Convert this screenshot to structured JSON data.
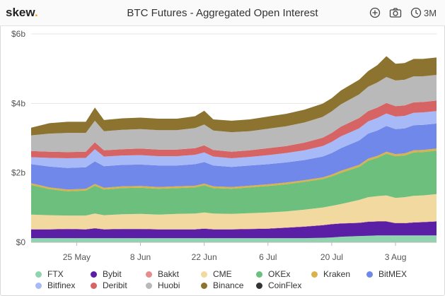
{
  "header": {
    "logo_text": "skew",
    "logo_dot": ".",
    "title": "BTC Futures - Aggregated Open Interest",
    "add_icon": "plus-circle-icon",
    "camera_icon": "camera-icon",
    "period_icon": "clock-icon",
    "period_label": "3M"
  },
  "chart_data": {
    "type": "area",
    "stacked": true,
    "title": "BTC Futures - Aggregated Open Interest",
    "ylim": [
      0,
      6
    ],
    "y_unit": "$ billions",
    "y_ticks": [
      "$0",
      "$2b",
      "$4b",
      "$6b"
    ],
    "y_tick_values": [
      0,
      2,
      4,
      6
    ],
    "x_ticks": [
      "25 May",
      "8 Jun",
      "22 Jun",
      "6 Jul",
      "20 Jul",
      "3 Aug"
    ],
    "x_tick_days": [
      10,
      24,
      38,
      52,
      66,
      80
    ],
    "x_range_days": [
      0,
      89
    ],
    "grid": true,
    "legend_position": "bottom",
    "sample_days": [
      0,
      4,
      8,
      12,
      14,
      16,
      20,
      24,
      28,
      32,
      36,
      38,
      40,
      44,
      48,
      52,
      56,
      60,
      64,
      66,
      68,
      72,
      74,
      76,
      78,
      80,
      82,
      84,
      86,
      89
    ],
    "series": [
      {
        "name": "FTX",
        "color": "#8fd4ae",
        "values": [
          0.12,
          0.12,
          0.12,
          0.12,
          0.12,
          0.12,
          0.12,
          0.12,
          0.12,
          0.12,
          0.12,
          0.12,
          0.12,
          0.12,
          0.12,
          0.12,
          0.12,
          0.12,
          0.13,
          0.14,
          0.16,
          0.18,
          0.19,
          0.2,
          0.2,
          0.2,
          0.2,
          0.2,
          0.2,
          0.2
        ]
      },
      {
        "name": "Bybit",
        "color": "#5b1fa6",
        "values": [
          0.25,
          0.25,
          0.26,
          0.25,
          0.28,
          0.25,
          0.26,
          0.26,
          0.25,
          0.25,
          0.25,
          0.27,
          0.25,
          0.25,
          0.26,
          0.27,
          0.3,
          0.33,
          0.36,
          0.38,
          0.38,
          0.38,
          0.4,
          0.4,
          0.4,
          0.35,
          0.35,
          0.37,
          0.38,
          0.4
        ]
      },
      {
        "name": "Bakkt",
        "color": "#e58c8c",
        "values": [
          0.01,
          0.01,
          0.01,
          0.01,
          0.01,
          0.01,
          0.01,
          0.01,
          0.01,
          0.01,
          0.01,
          0.01,
          0.01,
          0.01,
          0.01,
          0.01,
          0.01,
          0.01,
          0.01,
          0.01,
          0.01,
          0.01,
          0.01,
          0.01,
          0.01,
          0.01,
          0.01,
          0.01,
          0.01,
          0.01
        ]
      },
      {
        "name": "CME",
        "color": "#f2d9a0",
        "values": [
          0.42,
          0.4,
          0.38,
          0.39,
          0.42,
          0.4,
          0.42,
          0.43,
          0.42,
          0.44,
          0.45,
          0.46,
          0.45,
          0.44,
          0.45,
          0.46,
          0.46,
          0.48,
          0.5,
          0.52,
          0.55,
          0.65,
          0.7,
          0.72,
          0.74,
          0.72,
          0.74,
          0.76,
          0.76,
          0.78
        ]
      },
      {
        "name": "OKEx",
        "color": "#6cbf7d",
        "values": [
          0.85,
          0.75,
          0.7,
          0.72,
          0.8,
          0.74,
          0.75,
          0.75,
          0.74,
          0.74,
          0.75,
          0.78,
          0.73,
          0.72,
          0.74,
          0.76,
          0.78,
          0.8,
          0.82,
          0.85,
          0.9,
          0.95,
          1.05,
          1.1,
          1.2,
          1.2,
          1.2,
          1.25,
          1.25,
          1.25
        ]
      },
      {
        "name": "Kraken",
        "color": "#d9b24a",
        "values": [
          0.05,
          0.05,
          0.05,
          0.05,
          0.05,
          0.05,
          0.05,
          0.05,
          0.05,
          0.05,
          0.05,
          0.05,
          0.05,
          0.05,
          0.05,
          0.05,
          0.05,
          0.05,
          0.05,
          0.05,
          0.06,
          0.06,
          0.06,
          0.06,
          0.06,
          0.06,
          0.06,
          0.06,
          0.06,
          0.06
        ]
      },
      {
        "name": "BitMEX",
        "color": "#6f88ea",
        "values": [
          0.55,
          0.6,
          0.62,
          0.62,
          0.65,
          0.62,
          0.62,
          0.62,
          0.62,
          0.6,
          0.62,
          0.62,
          0.6,
          0.58,
          0.58,
          0.58,
          0.58,
          0.58,
          0.6,
          0.62,
          0.65,
          0.7,
          0.72,
          0.73,
          0.74,
          0.72,
          0.72,
          0.72,
          0.72,
          0.72
        ]
      },
      {
        "name": "Bitfinex",
        "color": "#a8b9f7",
        "values": [
          0.2,
          0.25,
          0.28,
          0.27,
          0.35,
          0.28,
          0.27,
          0.27,
          0.27,
          0.27,
          0.27,
          0.28,
          0.26,
          0.25,
          0.25,
          0.26,
          0.27,
          0.28,
          0.3,
          0.32,
          0.34,
          0.35,
          0.35,
          0.36,
          0.36,
          0.36,
          0.36,
          0.36,
          0.36,
          0.36
        ]
      },
      {
        "name": "Deribit",
        "color": "#d76464",
        "values": [
          0.18,
          0.18,
          0.18,
          0.18,
          0.2,
          0.18,
          0.18,
          0.19,
          0.19,
          0.19,
          0.19,
          0.2,
          0.19,
          0.19,
          0.19,
          0.2,
          0.2,
          0.22,
          0.24,
          0.26,
          0.28,
          0.3,
          0.3,
          0.3,
          0.3,
          0.3,
          0.3,
          0.3,
          0.3,
          0.3
        ]
      },
      {
        "name": "Huobi",
        "color": "#b9b9b9",
        "values": [
          0.45,
          0.52,
          0.55,
          0.54,
          0.62,
          0.55,
          0.56,
          0.56,
          0.56,
          0.56,
          0.58,
          0.6,
          0.56,
          0.56,
          0.55,
          0.56,
          0.57,
          0.58,
          0.6,
          0.62,
          0.64,
          0.68,
          0.7,
          0.72,
          0.75,
          0.74,
          0.74,
          0.75,
          0.74,
          0.74
        ]
      },
      {
        "name": "Binance",
        "color": "#8c7330",
        "values": [
          0.22,
          0.3,
          0.32,
          0.32,
          0.38,
          0.32,
          0.33,
          0.33,
          0.33,
          0.33,
          0.34,
          0.4,
          0.32,
          0.33,
          0.34,
          0.35,
          0.36,
          0.37,
          0.38,
          0.38,
          0.4,
          0.42,
          0.45,
          0.5,
          0.6,
          0.48,
          0.48,
          0.5,
          0.5,
          0.5
        ]
      },
      {
        "name": "CoinFlex",
        "color": "#333333",
        "values": [
          0,
          0,
          0,
          0,
          0,
          0,
          0,
          0,
          0,
          0,
          0,
          0,
          0,
          0,
          0,
          0,
          0,
          0,
          0,
          0,
          0,
          0,
          0,
          0,
          0,
          0,
          0,
          0,
          0,
          0
        ]
      }
    ]
  }
}
